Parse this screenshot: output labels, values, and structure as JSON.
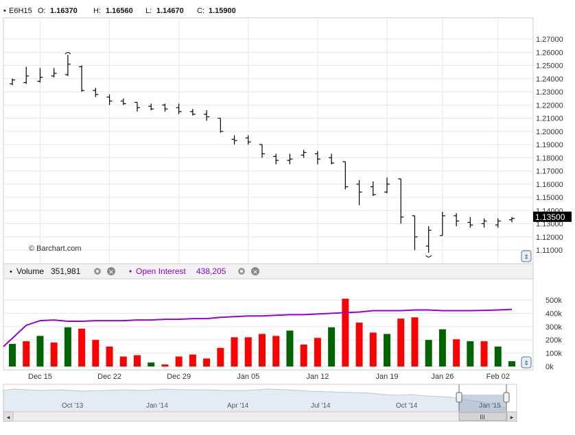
{
  "header": {
    "symbol": "E6H15",
    "open_label": "O:",
    "open_value": "1.16370",
    "high_label": "H:",
    "high_value": "1.16560",
    "low_label": "L:",
    "low_value": "1.14670",
    "close_label": "C:",
    "close_value": "1.15900"
  },
  "watermark": "© Barchart.com",
  "price_panel": {
    "last_price_label": "1.13500",
    "y_ticks": [
      "1.27000",
      "1.26000",
      "1.25000",
      "1.24000",
      "1.23000",
      "1.22000",
      "1.21000",
      "1.20000",
      "1.19000",
      "1.18000",
      "1.17000",
      "1.16000",
      "1.15000",
      "1.14000",
      "1.13000",
      "1.12000",
      "1.11000"
    ]
  },
  "volume_panel": {
    "volume_label": "Volume",
    "volume_value": "351,981",
    "oi_label": "Open Interest",
    "oi_value": "438,205",
    "y_ticks": [
      "500k",
      "400k",
      "300k",
      "200k",
      "100k",
      "0k"
    ]
  },
  "x_axis_dates": [
    "Dec 15",
    "Dec 22",
    "Dec 29",
    "Jan 05",
    "Jan 12",
    "Jan 19",
    "Jan 26",
    "Feb 02"
  ],
  "navigator": {
    "labels": [
      "Oct '13",
      "Jan '14",
      "Apr '14",
      "Jul '14",
      "Oct '14",
      "Jan '15"
    ],
    "scroll_left": "◂",
    "scroll_right": "▸",
    "grip": "III"
  },
  "colors": {
    "volume_up": "#006400",
    "volume_down": "#ff0000",
    "open_interest_line": "#9400d3",
    "price_bar": "#000000",
    "grid": "#e6e6e6",
    "last_price_bg": "#000000"
  },
  "chart_data": {
    "type": "ohlc_with_volume",
    "symbol": "E6H15",
    "price_ohlc": [
      {
        "o": 1.236,
        "h": 1.24,
        "l": 1.235,
        "c": 1.239
      },
      {
        "o": 1.237,
        "h": 1.249,
        "l": 1.236,
        "c": 1.242
      },
      {
        "o": 1.238,
        "h": 1.248,
        "l": 1.237,
        "c": 1.241
      },
      {
        "o": 1.242,
        "h": 1.248,
        "l": 1.241,
        "c": 1.244
      },
      {
        "o": 1.243,
        "h": 1.258,
        "l": 1.242,
        "c": 1.251
      },
      {
        "o": 1.249,
        "h": 1.25,
        "l": 1.23,
        "c": 1.231
      },
      {
        "o": 1.231,
        "h": 1.233,
        "l": 1.226,
        "c": 1.228
      },
      {
        "o": 1.226,
        "h": 1.228,
        "l": 1.22,
        "c": 1.223
      },
      {
        "o": 1.223,
        "h": 1.225,
        "l": 1.22,
        "c": 1.221
      },
      {
        "o": 1.222,
        "h": 1.222,
        "l": 1.215,
        "c": 1.218
      },
      {
        "o": 1.219,
        "h": 1.221,
        "l": 1.216,
        "c": 1.217
      },
      {
        "o": 1.22,
        "h": 1.221,
        "l": 1.215,
        "c": 1.217
      },
      {
        "o": 1.218,
        "h": 1.221,
        "l": 1.213,
        "c": 1.215
      },
      {
        "o": 1.215,
        "h": 1.217,
        "l": 1.212,
        "c": 1.213
      },
      {
        "o": 1.213,
        "h": 1.216,
        "l": 1.208,
        "c": 1.211
      },
      {
        "o": 1.21,
        "h": 1.21,
        "l": 1.199,
        "c": 1.2
      },
      {
        "o": 1.194,
        "h": 1.197,
        "l": 1.19,
        "c": 1.193
      },
      {
        "o": 1.195,
        "h": 1.197,
        "l": 1.19,
        "c": 1.192
      },
      {
        "o": 1.19,
        "h": 1.19,
        "l": 1.18,
        "c": 1.183
      },
      {
        "o": 1.181,
        "h": 1.183,
        "l": 1.175,
        "c": 1.178
      },
      {
        "o": 1.178,
        "h": 1.183,
        "l": 1.175,
        "c": 1.179
      },
      {
        "o": 1.182,
        "h": 1.186,
        "l": 1.18,
        "c": 1.184
      },
      {
        "o": 1.183,
        "h": 1.185,
        "l": 1.175,
        "c": 1.179
      },
      {
        "o": 1.18,
        "h": 1.183,
        "l": 1.175,
        "c": 1.176
      },
      {
        "o": 1.177,
        "h": 1.177,
        "l": 1.156,
        "c": 1.158
      },
      {
        "o": 1.16,
        "h": 1.163,
        "l": 1.144,
        "c": 1.154
      },
      {
        "o": 1.158,
        "h": 1.162,
        "l": 1.151,
        "c": 1.152
      },
      {
        "o": 1.154,
        "h": 1.165,
        "l": 1.153,
        "c": 1.16
      },
      {
        "o": 1.164,
        "h": 1.164,
        "l": 1.13,
        "c": 1.135
      },
      {
        "o": 1.136,
        "h": 1.136,
        "l": 1.11,
        "c": 1.12
      },
      {
        "o": 1.113,
        "h": 1.128,
        "l": 1.108,
        "c": 1.125
      },
      {
        "o": 1.121,
        "h": 1.139,
        "l": 1.121,
        "c": 1.136
      },
      {
        "o": 1.136,
        "h": 1.138,
        "l": 1.128,
        "c": 1.132
      },
      {
        "o": 1.131,
        "h": 1.135,
        "l": 1.127,
        "c": 1.129
      },
      {
        "o": 1.13,
        "h": 1.134,
        "l": 1.127,
        "c": 1.132
      },
      {
        "o": 1.129,
        "h": 1.134,
        "l": 1.127,
        "c": 1.132
      },
      {
        "o": 1.133,
        "h": 1.135,
        "l": 1.131,
        "c": 1.134
      }
    ],
    "volume": [
      170000,
      190000,
      230000,
      180000,
      295000,
      285000,
      200000,
      150000,
      75000,
      85000,
      30000,
      15000,
      75000,
      90000,
      60000,
      140000,
      220000,
      220000,
      245000,
      230000,
      270000,
      165000,
      215000,
      295000,
      510000,
      330000,
      255000,
      245000,
      360000,
      370000,
      200000,
      280000,
      205000,
      190000,
      190000,
      150000,
      40000
    ],
    "volume_up": [
      true,
      false,
      true,
      false,
      true,
      false,
      false,
      false,
      false,
      false,
      true,
      false,
      false,
      false,
      false,
      false,
      false,
      false,
      false,
      false,
      true,
      false,
      false,
      true,
      false,
      false,
      false,
      true,
      false,
      false,
      true,
      true,
      false,
      true,
      false,
      true,
      true
    ],
    "open_interest": [
      150000,
      310000,
      345000,
      350000,
      340000,
      340000,
      345000,
      345000,
      345000,
      350000,
      350000,
      355000,
      355000,
      360000,
      360000,
      370000,
      375000,
      380000,
      380000,
      385000,
      390000,
      390000,
      395000,
      400000,
      405000,
      410000,
      420000,
      420000,
      420000,
      425000,
      425000,
      420000,
      420000,
      420000,
      422000,
      425000,
      430000
    ],
    "price_ylim": [
      1.105,
      1.28
    ],
    "volume_ylim": [
      0,
      580000
    ],
    "date_index_of_labels": [
      2,
      7,
      12,
      17,
      22,
      27,
      31,
      35
    ]
  }
}
